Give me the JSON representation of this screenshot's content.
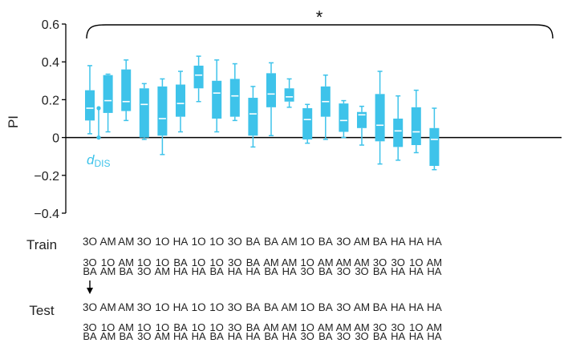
{
  "chart_data": {
    "type": "box",
    "ylabel": "PI",
    "ylim": [
      -0.4,
      0.6
    ],
    "yticks": [
      -0.4,
      -0.2,
      0,
      0.2,
      0.4,
      0.6
    ],
    "ytick_labels": [
      "−0.4",
      "−0.2",
      "0",
      "0.2",
      "0.4",
      "0.6"
    ],
    "significance_marker": "*",
    "annotation": {
      "main": "d",
      "sub": "DIS",
      "value": 0.155
    },
    "colors": {
      "box": "#3ec3ea",
      "median": "#ffffff",
      "axis": "#000000",
      "text": "#222222"
    },
    "row_labels": {
      "train": "Train",
      "test": "Test"
    },
    "boxes": [
      {
        "train": "3O",
        "train_pair": [
          "3O",
          "BA"
        ],
        "test": "3O",
        "test_pair": [
          "3O",
          "BA"
        ],
        "min": 0.02,
        "q1": 0.09,
        "median": 0.155,
        "q3": 0.25,
        "max": 0.38
      },
      {
        "train": "AM",
        "train_pair": [
          "1O",
          "AM"
        ],
        "test": "AM",
        "test_pair": [
          "1O",
          "AM"
        ],
        "min": 0.03,
        "q1": 0.13,
        "median": 0.195,
        "q3": 0.33,
        "max": 0.335
      },
      {
        "train": "AM",
        "train_pair": [
          "AM",
          "BA"
        ],
        "test": "AM",
        "test_pair": [
          "AM",
          "BA"
        ],
        "min": 0.09,
        "q1": 0.14,
        "median": 0.19,
        "q3": 0.36,
        "max": 0.41
      },
      {
        "train": "3O",
        "train_pair": [
          "1O",
          "3O"
        ],
        "test": "3O",
        "test_pair": [
          "1O",
          "3O"
        ],
        "min": -0.01,
        "q1": 0.0,
        "median": 0.175,
        "q3": 0.26,
        "max": 0.285
      },
      {
        "train": "1O",
        "train_pair": [
          "1O",
          "AM"
        ],
        "test": "1O",
        "test_pair": [
          "1O",
          "AM"
        ],
        "min": -0.09,
        "q1": 0.01,
        "median": 0.1,
        "q3": 0.27,
        "max": 0.31
      },
      {
        "train": "HA",
        "train_pair": [
          "BA",
          "HA"
        ],
        "test": "HA",
        "test_pair": [
          "BA",
          "HA"
        ],
        "min": 0.03,
        "q1": 0.11,
        "median": 0.18,
        "q3": 0.28,
        "max": 0.35
      },
      {
        "train": "1O",
        "train_pair": [
          "1O",
          "HA"
        ],
        "test": "1O",
        "test_pair": [
          "1O",
          "HA"
        ],
        "min": 0.19,
        "q1": 0.26,
        "median": 0.33,
        "q3": 0.38,
        "max": 0.43
      },
      {
        "train": "1O",
        "train_pair": [
          "1O",
          "BA"
        ],
        "test": "1O",
        "test_pair": [
          "1O",
          "BA"
        ],
        "min": 0.03,
        "q1": 0.1,
        "median": 0.235,
        "q3": 0.3,
        "max": 0.41
      },
      {
        "train": "3O",
        "train_pair": [
          "3O",
          "HA"
        ],
        "test": "3O",
        "test_pair": [
          "3O",
          "HA"
        ],
        "min": 0.09,
        "q1": 0.11,
        "median": 0.22,
        "q3": 0.31,
        "max": 0.39
      },
      {
        "train": "BA",
        "train_pair": [
          "BA",
          "HA"
        ],
        "test": "BA",
        "test_pair": [
          "BA",
          "HA"
        ],
        "min": -0.05,
        "q1": 0.01,
        "median": 0.125,
        "q3": 0.21,
        "max": 0.27
      },
      {
        "train": "BA",
        "train_pair": [
          "AM",
          "BA"
        ],
        "test": "BA",
        "test_pair": [
          "AM",
          "BA"
        ],
        "min": 0.01,
        "q1": 0.16,
        "median": 0.23,
        "q3": 0.34,
        "max": 0.395
      },
      {
        "train": "AM",
        "train_pair": [
          "AM",
          "HA"
        ],
        "test": "AM",
        "test_pair": [
          "AM",
          "HA"
        ],
        "min": 0.16,
        "q1": 0.19,
        "median": 0.215,
        "q3": 0.26,
        "max": 0.31
      },
      {
        "train": "1O",
        "train_pair": [
          "1O",
          "3O"
        ],
        "test": "1O",
        "test_pair": [
          "1O",
          "3O"
        ],
        "min": -0.03,
        "q1": -0.01,
        "median": 0.095,
        "q3": 0.155,
        "max": 0.175
      },
      {
        "train": "BA",
        "train_pair": [
          "AM",
          "BA"
        ],
        "test": "BA",
        "test_pair": [
          "AM",
          "BA"
        ],
        "min": -0.01,
        "q1": 0.11,
        "median": 0.19,
        "q3": 0.27,
        "max": 0.33
      },
      {
        "train": "3O",
        "train_pair": [
          "AM",
          "3O"
        ],
        "test": "3O",
        "test_pair": [
          "AM",
          "3O"
        ],
        "min": 0.0,
        "q1": 0.03,
        "median": 0.09,
        "q3": 0.18,
        "max": 0.195
      },
      {
        "train": "AM",
        "train_pair": [
          "AM",
          "3O"
        ],
        "test": "AM",
        "test_pair": [
          "AM",
          "3O"
        ],
        "min": -0.04,
        "q1": 0.05,
        "median": 0.12,
        "q3": 0.135,
        "max": 0.165
      },
      {
        "train": "BA",
        "train_pair": [
          "3O",
          "BA"
        ],
        "test": "BA",
        "test_pair": [
          "3O",
          "BA"
        ],
        "min": -0.14,
        "q1": -0.02,
        "median": 0.065,
        "q3": 0.23,
        "max": 0.35
      },
      {
        "train": "HA",
        "train_pair": [
          "3O",
          "HA"
        ],
        "test": "HA",
        "test_pair": [
          "3O",
          "HA"
        ],
        "min": -0.12,
        "q1": -0.05,
        "median": 0.035,
        "q3": 0.1,
        "max": 0.22
      },
      {
        "train": "HA",
        "train_pair": [
          "1O",
          "HA"
        ],
        "test": "HA",
        "test_pair": [
          "1O",
          "HA"
        ],
        "min": -0.08,
        "q1": -0.04,
        "median": 0.03,
        "q3": 0.16,
        "max": 0.25
      },
      {
        "train": "HA",
        "train_pair": [
          "AM",
          "HA"
        ],
        "test": "HA",
        "test_pair": [
          "AM",
          "HA"
        ],
        "min": -0.17,
        "q1": -0.15,
        "median": -0.01,
        "q3": 0.05,
        "max": 0.155
      }
    ]
  }
}
